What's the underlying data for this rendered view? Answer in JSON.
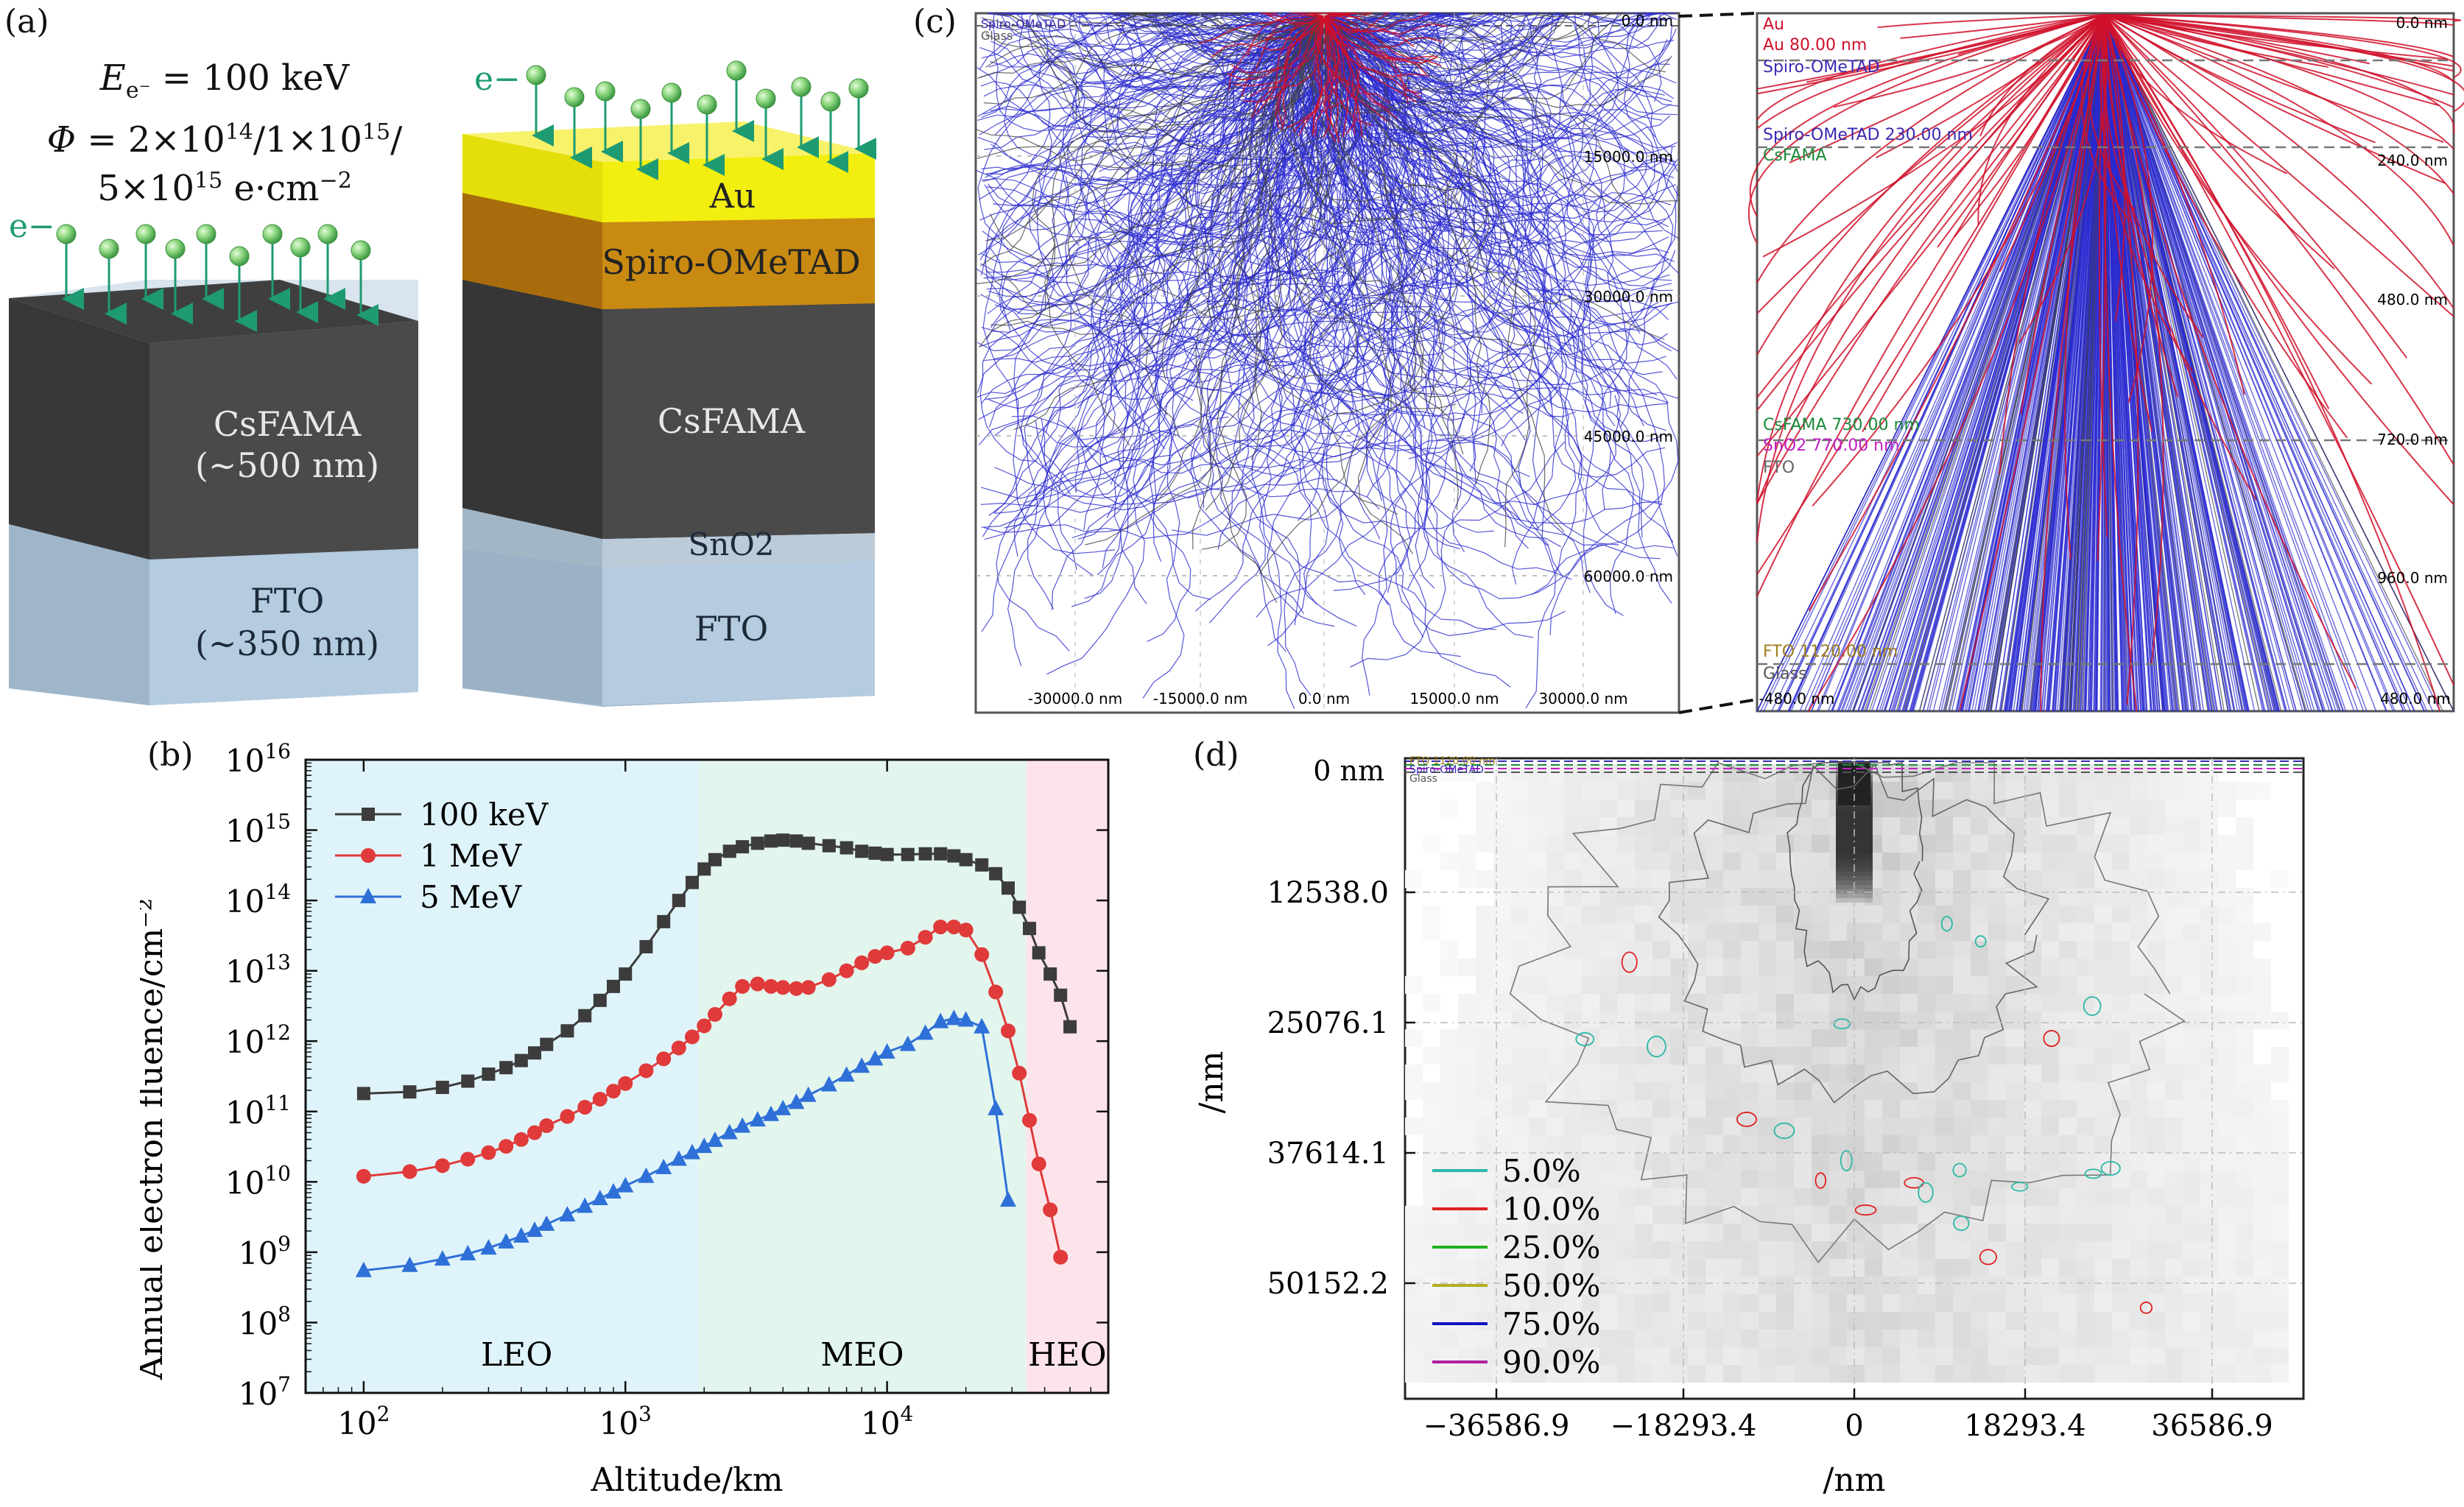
{
  "panel_labels": {
    "a": "(a)",
    "b": "(b)",
    "c": "(c)",
    "d": "(d)"
  },
  "panel_a": {
    "energy": "E e- = 100 keV",
    "fluence_line1": "Φ = 2×10^14/1×10^15/",
    "fluence_line2": "5×10^15 e·cm^−2",
    "electron_label": "e−",
    "film": {
      "layers": [
        "CsFAMA",
        "(~500 nm)",
        "FTO",
        "(~350 nm)"
      ]
    },
    "device": {
      "layers": [
        "Au",
        "Spiro-OMeTAD",
        "CsFAMA",
        "SnO2",
        "FTO"
      ]
    },
    "colors": {
      "au": "#f2ee10",
      "spiro": "#c98a12",
      "perovskite": "#4a4a4a",
      "sno2": "#b9c9d6",
      "fto": "#b4cbe0",
      "electron": "#88d67a",
      "arrow": "#1e9b73"
    }
  },
  "panel_c": {
    "left_depth_labels": [
      "0.0 nm",
      "15000.0 nm",
      "30000.0 nm",
      "45000.0 nm",
      "60000.0 nm"
    ],
    "left_x_labels": [
      "-30000.0 nm",
      "-15000.0 nm",
      "0.0 nm",
      "15000.0 nm",
      "30000.0 nm"
    ],
    "left_layer_labels": [
      "Spiro-OMeTAD",
      "Glass"
    ],
    "right_layers": [
      {
        "name": "Au",
        "color": "#d0102a"
      },
      {
        "name": "Au 80.00 nm",
        "color": "#d0102a"
      },
      {
        "name": "Spiro-OMeTAD",
        "color": "#3a2ab0"
      },
      {
        "name": "Spiro-OMeTAD 230.00 nm",
        "color": "#3a2ab0"
      },
      {
        "name": "CsFAMA",
        "color": "#1b8a3a"
      },
      {
        "name": "CsFAMA 730.00 nm",
        "color": "#1b8a3a"
      },
      {
        "name": "SnO2 770.00 nm",
        "color": "#c020c0"
      },
      {
        "name": "FTO",
        "color": "#666666"
      },
      {
        "name": "FTO 1120.00 nm",
        "color": "#a08020"
      },
      {
        "name": "Glass",
        "color": "#555555"
      }
    ],
    "right_depth_labels": [
      "0.0 nm",
      "240.0 nm",
      "480.0 nm",
      "720.0 nm",
      "960.0 nm"
    ],
    "right_x_labels": [
      "-480.0 nm",
      "480.0 nm"
    ],
    "trajectory_colors": {
      "electron": "#2a2ad0",
      "secondary": "#d0102a",
      "absorbed": "#444444"
    }
  },
  "panel_d": {
    "top_label": "0 nm",
    "layer_labels": [
      "FTO 1120.00 nm",
      "Spiro-OMeTAD",
      "Glass"
    ],
    "ylabel": "/nm",
    "xlabel": "/nm",
    "y_ticks": [
      "12538.0",
      "25076.1",
      "37614.1",
      "50152.2"
    ],
    "x_ticks": [
      "−36586.9",
      "−18293.4",
      "0",
      "18293.4",
      "36586.9"
    ],
    "legend": [
      {
        "label": "5.0%",
        "color": "#2ab8a8"
      },
      {
        "label": "10.0%",
        "color": "#e02020"
      },
      {
        "label": "25.0%",
        "color": "#20b020"
      },
      {
        "label": "50.0%",
        "color": "#b0b020"
      },
      {
        "label": "75.0%",
        "color": "#1010c0"
      },
      {
        "label": "90.0%",
        "color": "#b020a0"
      }
    ]
  },
  "chart_data": {
    "type": "line",
    "xlabel": "Altitude/km",
    "ylabel": "Annual electron fluence/cm⁻²",
    "x_scale": "log",
    "y_scale": "log",
    "xlim": [
      60,
      70000
    ],
    "ylim_exponents": [
      7,
      16
    ],
    "x_tick_exponents": [
      2,
      3,
      4
    ],
    "y_tick_exponents": [
      7,
      8,
      9,
      10,
      11,
      12,
      13,
      14,
      15,
      16
    ],
    "legend_position": "top-left",
    "regions": [
      {
        "label": "LEO",
        "from": 60,
        "to": 1900,
        "color": "#dff4fa"
      },
      {
        "label": "MEO",
        "from": 1900,
        "to": 34000,
        "color": "#e2f6ee"
      },
      {
        "label": "HEO",
        "from": 34000,
        "to": 70000,
        "color": "#fde4ea"
      }
    ],
    "series": [
      {
        "name": "100 keV",
        "color": "#3c3c3c",
        "marker": "square",
        "x": [
          100,
          150,
          200,
          250,
          300,
          350,
          400,
          450,
          500,
          600,
          700,
          800,
          900,
          1000,
          1200,
          1400,
          1600,
          1800,
          2000,
          2200,
          2500,
          2800,
          3200,
          3600,
          4000,
          4500,
          5000,
          6000,
          7000,
          8000,
          9000,
          10000,
          12000,
          14000,
          16000,
          18000,
          20000,
          23000,
          26000,
          29000,
          32000,
          35000,
          38000,
          42000,
          46000,
          50000
        ],
        "y": [
          180000000000.0,
          190000000000.0,
          220000000000.0,
          270000000000.0,
          340000000000.0,
          420000000000.0,
          530000000000.0,
          680000000000.0,
          900000000000.0,
          1400000000000.0,
          2300000000000.0,
          3800000000000.0,
          6000000000000.0,
          9000000000000.0,
          22000000000000.0,
          50000000000000.0,
          100000000000000.0,
          180000000000000.0,
          280000000000000.0,
          380000000000000.0,
          500000000000000.0,
          580000000000000.0,
          650000000000000.0,
          700000000000000.0,
          720000000000000.0,
          700000000000000.0,
          650000000000000.0,
          600000000000000.0,
          560000000000000.0,
          500000000000000.0,
          470000000000000.0,
          450000000000000.0,
          450000000000000.0,
          460000000000000.0,
          460000000000000.0,
          430000000000000.0,
          380000000000000.0,
          320000000000000.0,
          240000000000000.0,
          150000000000000.0,
          80000000000000.0,
          40000000000000.0,
          18000000000000.0,
          9000000000000.0,
          4500000000000.0,
          1600000000000.0
        ]
      },
      {
        "name": "1 MeV",
        "color": "#e03a3a",
        "marker": "circle",
        "x": [
          100,
          150,
          200,
          250,
          300,
          350,
          400,
          450,
          500,
          600,
          700,
          800,
          900,
          1000,
          1200,
          1400,
          1600,
          1800,
          2000,
          2200,
          2500,
          2800,
          3200,
          3600,
          4000,
          4500,
          5000,
          6000,
          7000,
          8000,
          9000,
          10000,
          12000,
          14000,
          16000,
          18000,
          20000,
          23000,
          26000,
          29000,
          32000,
          35000,
          38000,
          42000,
          46000
        ],
        "y": [
          12000000000.0,
          14000000000.0,
          17000000000.0,
          21000000000.0,
          26000000000.0,
          32000000000.0,
          40000000000.0,
          50000000000.0,
          63000000000.0,
          85000000000.0,
          115000000000.0,
          150000000000.0,
          195000000000.0,
          250000000000.0,
          380000000000.0,
          560000000000.0,
          800000000000.0,
          1150000000000.0,
          1650000000000.0,
          2400000000000.0,
          4000000000000.0,
          6000000000000.0,
          6500000000000.0,
          6000000000000.0,
          5800000000000.0,
          5600000000000.0,
          5800000000000.0,
          7500000000000.0,
          10000000000000.0,
          13000000000000.0,
          16000000000000.0,
          18000000000000.0,
          21000000000000.0,
          30000000000000.0,
          42000000000000.0,
          42000000000000.0,
          38000000000000.0,
          17000000000000.0,
          5000000000000.0,
          1400000000000.0,
          350000000000.0,
          75000000000.0,
          18000000000.0,
          4000000000.0,
          850000000.0
        ]
      },
      {
        "name": "5 MeV",
        "color": "#2f70d8",
        "marker": "triangle",
        "x": [
          100,
          150,
          200,
          250,
          300,
          350,
          400,
          450,
          500,
          600,
          700,
          800,
          900,
          1000,
          1200,
          1400,
          1600,
          1800,
          2000,
          2200,
          2500,
          2800,
          3200,
          3600,
          4000,
          4500,
          5000,
          6000,
          7000,
          8000,
          9000,
          10000,
          12000,
          14000,
          16000,
          18000,
          20000,
          23000,
          26000,
          29000
        ],
        "y": [
          550000000.0,
          650000000.0,
          800000000.0,
          950000000.0,
          1150000000.0,
          1400000000.0,
          1700000000.0,
          2050000000.0,
          2500000000.0,
          3400000000.0,
          4500000000.0,
          5800000000.0,
          7200000000.0,
          8800000000.0,
          12000000000.0,
          16000000000.0,
          21000000000.0,
          26000000000.0,
          32000000000.0,
          39000000000.0,
          50000000000.0,
          62000000000.0,
          76000000000.0,
          91000000000.0,
          110000000000.0,
          135000000000.0,
          170000000000.0,
          240000000000.0,
          330000000000.0,
          440000000000.0,
          560000000000.0,
          700000000000.0,
          900000000000.0,
          1300000000000.0,
          1900000000000.0,
          2100000000000.0,
          2000000000000.0,
          1600000000000.0,
          110000000000.0,
          5500000000.0
        ]
      }
    ]
  }
}
